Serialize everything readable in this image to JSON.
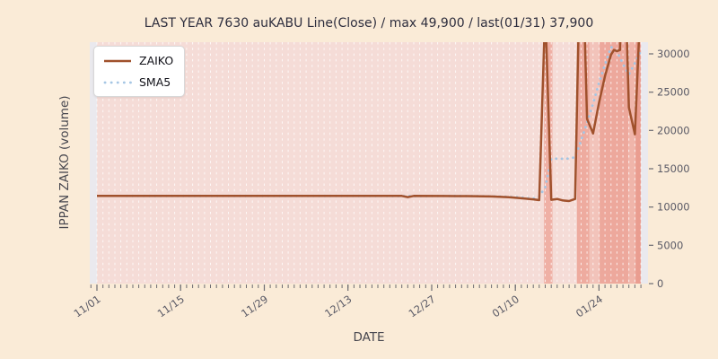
{
  "title": "LAST YEAR 7630 auKABU Line(Close) / max 49,900 / last(01/31) 37,900",
  "axes": {
    "xlabel": "DATE",
    "ylabel": "IPPAN ZAIKO (volume)"
  },
  "legend": [
    {
      "label": "ZAIKO",
      "style": "solid"
    },
    {
      "label": "SMA5",
      "style": "dotted"
    }
  ],
  "colors": {
    "outer_bg": "#faebd7",
    "plot_bg": "#eae9ee",
    "plot_pink": "#f5dcd7",
    "grid": "#ffffff",
    "zaiko": "#a0512c",
    "sma5": "#a5c6e4",
    "tick": "#6b6b72",
    "tick_text": "#5a5a66",
    "title_text": "#2e2e3e"
  },
  "chart_data": {
    "type": "line",
    "title": "LAST YEAR 7630 auKABU Line(Close) / max 49,900 / last(01/31) 37,900",
    "xlabel": "DATE",
    "ylabel": "IPPAN ZAIKO (volume)",
    "x_unit": "day index from 11/01",
    "xlim_days": [
      -1,
      91
    ],
    "ylim": [
      0,
      31500
    ],
    "yticks": [
      0,
      5000,
      10000,
      15000,
      20000,
      25000,
      30000
    ],
    "xticks_major": [
      {
        "day": 0,
        "label": "11/01"
      },
      {
        "day": 14,
        "label": "11/15"
      },
      {
        "day": 28,
        "label": "11/29"
      },
      {
        "day": 42,
        "label": "12/13"
      },
      {
        "day": 56,
        "label": "12/27"
      },
      {
        "day": 70,
        "label": "01/10"
      },
      {
        "day": 84,
        "label": "01/24"
      }
    ],
    "minor_xticks_daily": true,
    "grid": "vertical-dashed-daily",
    "legend_position": "upper-left",
    "annotations": {
      "max_close": "49,900",
      "last_date": "01/31",
      "last_close": "37,900"
    },
    "bands": [
      {
        "from_day": 74.8,
        "to_day": 76.2,
        "color": "#efb0a5"
      },
      {
        "from_day": 80.3,
        "to_day": 82.4,
        "color": "#eeab9f"
      },
      {
        "from_day": 82.4,
        "to_day": 84.1,
        "color": "#f2c3ba"
      },
      {
        "from_day": 84.1,
        "to_day": 88.9,
        "color": "#eda89c"
      },
      {
        "from_day": 88.9,
        "to_day": 90.1,
        "color": "#f0b5aa"
      },
      {
        "from_day": 90.1,
        "to_day": 91.0,
        "color": "#ea9d90"
      }
    ],
    "series": [
      {
        "name": "ZAIKO",
        "style": "solid",
        "points": [
          [
            0,
            11450
          ],
          [
            6,
            11450
          ],
          [
            12,
            11455
          ],
          [
            18,
            11450
          ],
          [
            24,
            11450
          ],
          [
            30,
            11455
          ],
          [
            36,
            11450
          ],
          [
            42,
            11450
          ],
          [
            48,
            11450
          ],
          [
            51,
            11450
          ],
          [
            52,
            11300
          ],
          [
            53,
            11450
          ],
          [
            58,
            11440
          ],
          [
            62,
            11430
          ],
          [
            66,
            11380
          ],
          [
            69,
            11280
          ],
          [
            71,
            11150
          ],
          [
            73,
            11000
          ],
          [
            74,
            10900
          ],
          [
            75,
            36000
          ],
          [
            76,
            10950
          ],
          [
            77,
            11050
          ],
          [
            78,
            10850
          ],
          [
            79,
            10780
          ],
          [
            80,
            11050
          ],
          [
            81,
            49900
          ],
          [
            82,
            21500
          ],
          [
            83,
            19600
          ],
          [
            84,
            23600
          ],
          [
            85,
            27100
          ],
          [
            86,
            29900
          ],
          [
            86.5,
            30500
          ],
          [
            87,
            30350
          ],
          [
            87.5,
            30500
          ],
          [
            88,
            49900
          ],
          [
            89,
            23000
          ],
          [
            90,
            19500
          ],
          [
            91,
            37900
          ]
        ]
      },
      {
        "name": "SMA5",
        "style": "dotted",
        "points": [
          [
            5,
            11450
          ],
          [
            12,
            11450
          ],
          [
            20,
            11450
          ],
          [
            28,
            11450
          ],
          [
            36,
            11450
          ],
          [
            44,
            11450
          ],
          [
            52,
            11420
          ],
          [
            58,
            11440
          ],
          [
            64,
            11420
          ],
          [
            68,
            11350
          ],
          [
            71,
            11250
          ],
          [
            73,
            11100
          ],
          [
            74,
            11350
          ],
          [
            75,
            12600
          ],
          [
            76,
            16300
          ],
          [
            77,
            16320
          ],
          [
            78,
            16300
          ],
          [
            79,
            16330
          ],
          [
            80,
            16500
          ],
          [
            81,
            18700
          ],
          [
            82,
            21000
          ],
          [
            83,
            23500
          ],
          [
            84,
            26200
          ],
          [
            85,
            28600
          ],
          [
            86,
            30900
          ],
          [
            87,
            30300
          ],
          [
            88,
            28700
          ],
          [
            89,
            27300
          ],
          [
            90,
            28800
          ],
          [
            91,
            30400
          ]
        ]
      }
    ]
  }
}
